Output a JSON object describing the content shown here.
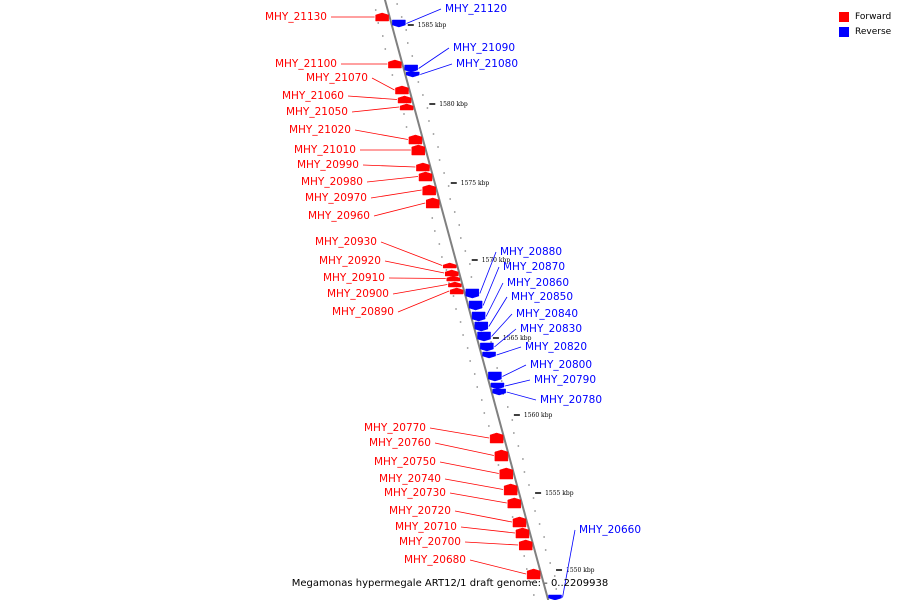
{
  "footer": "Megamonas hypermegale ART12/1 draft genome: - 0..2209938",
  "legend": [
    {
      "label": "Forward",
      "color": "#ff0000"
    },
    {
      "label": "Reverse",
      "color": "#0000ff"
    }
  ],
  "colors": {
    "forward": "#ff0000",
    "reverse": "#0000ff",
    "backbone": "#808080"
  },
  "ticks": [
    "1585 kbp",
    "1580 kbp",
    "1575 kbp",
    "1570 kbp",
    "1565 kbp",
    "1560 kbp",
    "1555 kbp",
    "1550 kbp"
  ],
  "genes": [
    {
      "label": "MHY_21130",
      "strand": "forward"
    },
    {
      "label": "MHY_21120",
      "strand": "reverse"
    },
    {
      "label": "MHY_21100",
      "strand": "forward"
    },
    {
      "label": "MHY_21090",
      "strand": "reverse"
    },
    {
      "label": "MHY_21080",
      "strand": "reverse"
    },
    {
      "label": "MHY_21070",
      "strand": "forward"
    },
    {
      "label": "MHY_21060",
      "strand": "forward"
    },
    {
      "label": "MHY_21050",
      "strand": "forward"
    },
    {
      "label": "MHY_21020",
      "strand": "forward"
    },
    {
      "label": "MHY_21010",
      "strand": "forward"
    },
    {
      "label": "MHY_20990",
      "strand": "forward"
    },
    {
      "label": "MHY_20980",
      "strand": "forward"
    },
    {
      "label": "MHY_20970",
      "strand": "forward"
    },
    {
      "label": "MHY_20960",
      "strand": "forward"
    },
    {
      "label": "MHY_20930",
      "strand": "forward"
    },
    {
      "label": "MHY_20920",
      "strand": "forward"
    },
    {
      "label": "MHY_20910",
      "strand": "forward"
    },
    {
      "label": "MHY_20900",
      "strand": "forward"
    },
    {
      "label": "MHY_20890",
      "strand": "forward"
    },
    {
      "label": "MHY_20880",
      "strand": "reverse"
    },
    {
      "label": "MHY_20870",
      "strand": "reverse"
    },
    {
      "label": "MHY_20860",
      "strand": "reverse"
    },
    {
      "label": "MHY_20850",
      "strand": "reverse"
    },
    {
      "label": "MHY_20840",
      "strand": "reverse"
    },
    {
      "label": "MHY_20830",
      "strand": "reverse"
    },
    {
      "label": "MHY_20820",
      "strand": "reverse"
    },
    {
      "label": "MHY_20800",
      "strand": "reverse"
    },
    {
      "label": "MHY_20790",
      "strand": "reverse"
    },
    {
      "label": "MHY_20780",
      "strand": "reverse"
    },
    {
      "label": "MHY_20770",
      "strand": "forward"
    },
    {
      "label": "MHY_20760",
      "strand": "forward"
    },
    {
      "label": "MHY_20750",
      "strand": "forward"
    },
    {
      "label": "MHY_20740",
      "strand": "forward"
    },
    {
      "label": "MHY_20730",
      "strand": "forward"
    },
    {
      "label": "MHY_20720",
      "strand": "forward"
    },
    {
      "label": "MHY_20710",
      "strand": "forward"
    },
    {
      "label": "MHY_20700",
      "strand": "forward"
    },
    {
      "label": "MHY_20680",
      "strand": "forward"
    },
    {
      "label": "MHY_20660",
      "strand": "reverse"
    }
  ]
}
